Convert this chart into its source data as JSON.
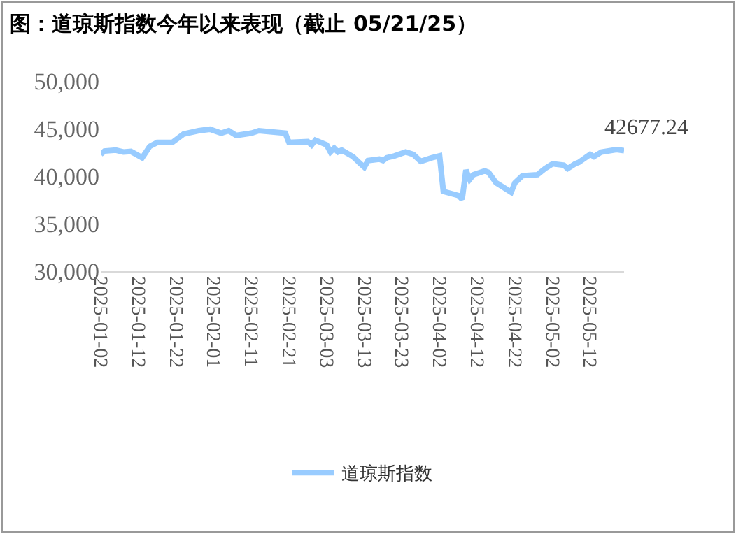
{
  "chart_data": {
    "type": "line",
    "title": "图：道琼斯指数今年以来表现（截止 05/21/25）",
    "series": [
      {
        "name": "道琼斯指数",
        "color": "#99ccff",
        "x": [
          "2025-01-02",
          "2025-01-03",
          "2025-01-06",
          "2025-01-08",
          "2025-01-10",
          "2025-01-13",
          "2025-01-14",
          "2025-01-15",
          "2025-01-17",
          "2025-01-21",
          "2025-01-24",
          "2025-01-28",
          "2025-01-31",
          "2025-02-03",
          "2025-02-05",
          "2025-02-07",
          "2025-02-11",
          "2025-02-13",
          "2025-02-20",
          "2025-02-21",
          "2025-02-26",
          "2025-02-27",
          "2025-02-28",
          "2025-03-03",
          "2025-03-04",
          "2025-03-05",
          "2025-03-06",
          "2025-03-07",
          "2025-03-10",
          "2025-03-12",
          "2025-03-13",
          "2025-03-14",
          "2025-03-17",
          "2025-03-18",
          "2025-03-19",
          "2025-03-21",
          "2025-03-24",
          "2025-03-26",
          "2025-03-28",
          "2025-03-31",
          "2025-04-02",
          "2025-04-03",
          "2025-04-07",
          "2025-04-08",
          "2025-04-09",
          "2025-04-10",
          "2025-04-11",
          "2025-04-14",
          "2025-04-15",
          "2025-04-17",
          "2025-04-18",
          "2025-04-21",
          "2025-04-22",
          "2025-04-24",
          "2025-04-28",
          "2025-04-30",
          "2025-05-02",
          "2025-05-05",
          "2025-05-06",
          "2025-05-08",
          "2025-05-09",
          "2025-05-12",
          "2025-05-13",
          "2025-05-15",
          "2025-05-19",
          "2025-05-21"
        ],
        "values": [
          42300,
          42640,
          42730,
          42540,
          42600,
          41940,
          42520,
          43130,
          43540,
          43540,
          44430,
          44780,
          44930,
          44520,
          44780,
          44280,
          44520,
          44780,
          44520,
          43540,
          43630,
          43280,
          43780,
          43280,
          42540,
          42940,
          42540,
          42730,
          42050,
          41300,
          40940,
          41640,
          41790,
          41640,
          41940,
          42130,
          42540,
          42290,
          41550,
          41940,
          42130,
          38400,
          37960,
          37570,
          40640,
          39660,
          40150,
          40550,
          40400,
          39300,
          39060,
          38310,
          39300,
          40050,
          40150,
          40790,
          41300,
          41150,
          40790,
          41300,
          41450,
          42290,
          42050,
          42540,
          42790,
          42677.24
        ]
      }
    ],
    "annotations": [
      {
        "text": "42677.24",
        "x": "2025-05-21",
        "y": 42677.24
      }
    ],
    "xlim": [
      "2025-01-02",
      "2025-05-21"
    ],
    "xticks": [
      "2025-01-02",
      "2025-01-12",
      "2025-01-22",
      "2025-02-01",
      "2025-02-11",
      "2025-02-21",
      "2025-03-03",
      "2025-03-13",
      "2025-03-23",
      "2025-04-02",
      "2025-04-12",
      "2025-04-22",
      "2025-05-02",
      "2025-05-12"
    ],
    "ylim": [
      30000,
      50000
    ],
    "yticks": [
      {
        "value": 30000,
        "label": "30,000"
      },
      {
        "value": 35000,
        "label": "35,000"
      },
      {
        "value": 40000,
        "label": "40,000"
      },
      {
        "value": 45000,
        "label": "45,000"
      },
      {
        "value": 50000,
        "label": "50,000"
      }
    ],
    "grid": false,
    "legend": "bottom",
    "marker": "none",
    "line_style": "solid"
  }
}
